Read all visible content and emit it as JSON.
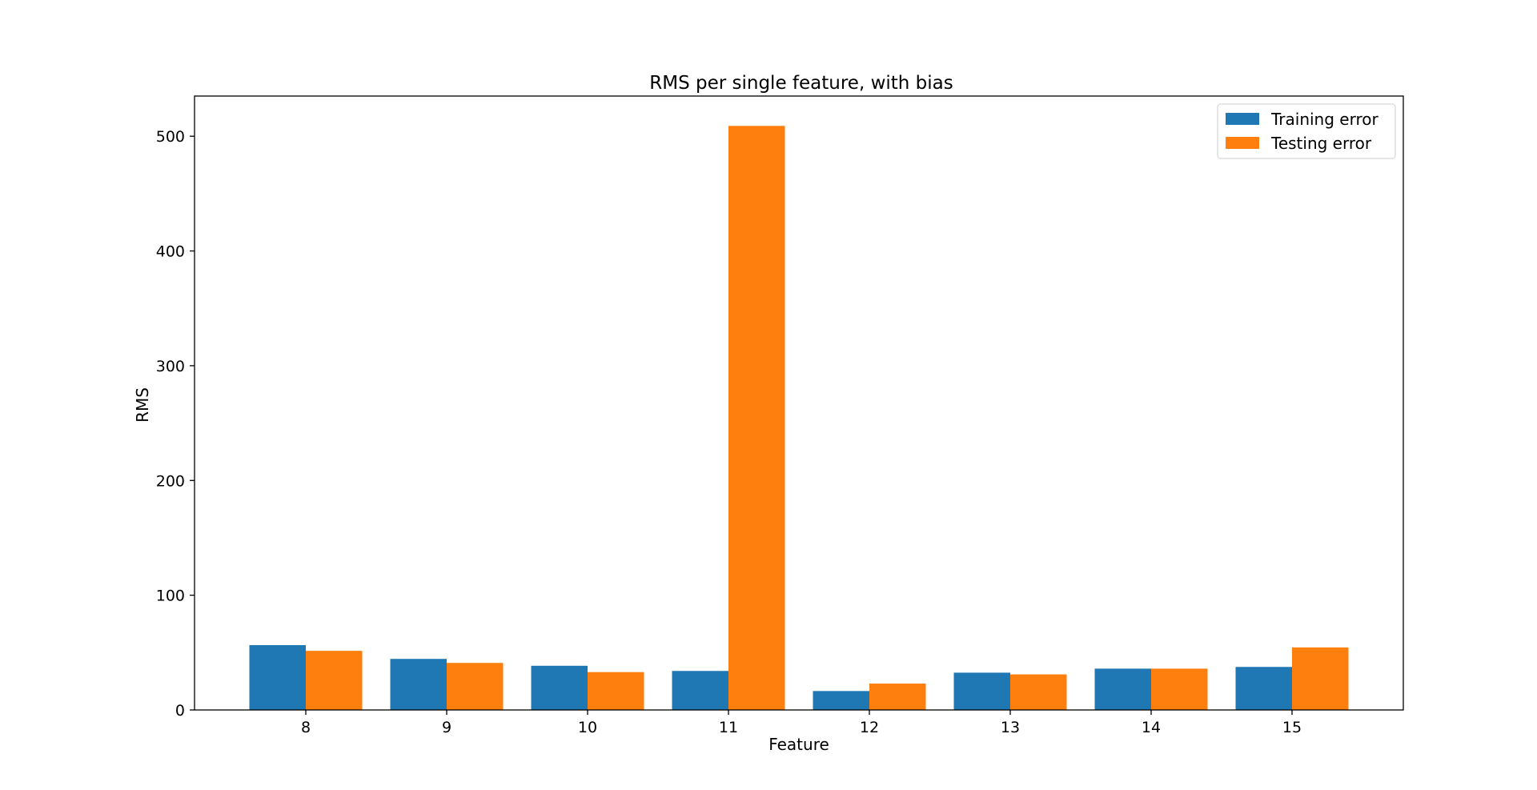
{
  "chart_data": {
    "type": "bar",
    "title": "RMS per single feature, with bias",
    "xlabel": "Feature",
    "ylabel": "RMS",
    "categories": [
      "8",
      "9",
      "10",
      "11",
      "12",
      "13",
      "14",
      "15"
    ],
    "series": [
      {
        "name": "Training error",
        "color": "#1f77b4",
        "values": [
          56.5,
          44.5,
          38.5,
          34,
          16.5,
          32.5,
          36,
          37.5
        ]
      },
      {
        "name": "Testing error",
        "color": "#ff7f0e",
        "values": [
          51.5,
          41,
          33,
          509,
          23,
          31,
          36,
          54.5
        ]
      }
    ],
    "ylim": [
      0,
      535
    ],
    "yticks": [
      0,
      100,
      200,
      300,
      400,
      500
    ],
    "grid": false,
    "legend_position": "top-right"
  }
}
